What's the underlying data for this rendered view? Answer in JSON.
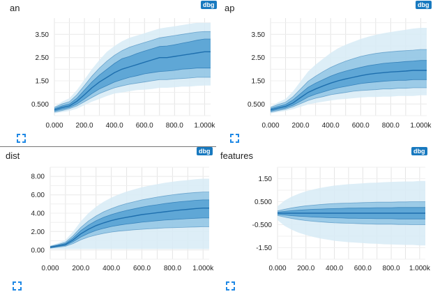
{
  "badge_label": "dbg",
  "colors": {
    "band_outer": "#d7ebf6",
    "band_mid": "#86bfe2",
    "band_inner": "#4b9bd0",
    "line": "#1e6fae",
    "grid": "#e4e4e4",
    "badge": "#1879bf"
  },
  "icons": {
    "expand": "fullscreen-expand-icon"
  },
  "chart_data": [
    {
      "id": "an",
      "type": "area",
      "title": "an",
      "x_ticks": [
        "0.000",
        "200.0",
        "400.0",
        "600.0",
        "800.0",
        "1.000k"
      ],
      "y_ticks": [
        "0.500",
        "1.50",
        "2.50",
        "3.50"
      ],
      "xlim": [
        0,
        1040
      ],
      "ylim": [
        0.0,
        4.2
      ],
      "x": [
        0,
        50,
        100,
        150,
        200,
        250,
        300,
        350,
        400,
        450,
        500,
        550,
        600,
        650,
        700,
        750,
        800,
        850,
        900,
        950,
        1000,
        1040
      ],
      "median": [
        0.25,
        0.35,
        0.42,
        0.62,
        0.9,
        1.2,
        1.45,
        1.65,
        1.85,
        2.0,
        2.1,
        2.2,
        2.3,
        2.4,
        2.5,
        2.5,
        2.55,
        2.6,
        2.65,
        2.7,
        2.75,
        2.75
      ],
      "q1": [
        0.2,
        0.28,
        0.35,
        0.5,
        0.72,
        0.95,
        1.15,
        1.3,
        1.45,
        1.55,
        1.65,
        1.72,
        1.8,
        1.85,
        1.9,
        1.92,
        1.95,
        2.0,
        2.02,
        2.05,
        2.05,
        2.05
      ],
      "q3": [
        0.3,
        0.42,
        0.5,
        0.75,
        1.1,
        1.45,
        1.75,
        2.0,
        2.25,
        2.45,
        2.55,
        2.68,
        2.78,
        2.88,
        2.98,
        3.0,
        3.05,
        3.12,
        3.18,
        3.25,
        3.3,
        3.3
      ],
      "p10": [
        0.15,
        0.22,
        0.3,
        0.42,
        0.6,
        0.78,
        0.95,
        1.08,
        1.2,
        1.28,
        1.35,
        1.4,
        1.45,
        1.5,
        1.55,
        1.55,
        1.58,
        1.6,
        1.62,
        1.65,
        1.65,
        1.65
      ],
      "p90": [
        0.35,
        0.5,
        0.6,
        0.9,
        1.3,
        1.7,
        2.05,
        2.35,
        2.6,
        2.8,
        2.95,
        3.05,
        3.15,
        3.25,
        3.35,
        3.4,
        3.45,
        3.5,
        3.55,
        3.6,
        3.62,
        3.62
      ],
      "min": [
        0.1,
        0.15,
        0.2,
        0.3,
        0.45,
        0.6,
        0.72,
        0.85,
        0.95,
        1.0,
        1.05,
        1.1,
        1.12,
        1.15,
        1.2,
        1.2,
        1.22,
        1.25,
        1.25,
        1.28,
        1.3,
        1.3
      ],
      "max": [
        0.4,
        0.6,
        0.75,
        1.1,
        1.55,
        2.0,
        2.4,
        2.75,
        3.0,
        3.2,
        3.35,
        3.45,
        3.55,
        3.65,
        3.75,
        3.8,
        3.85,
        3.9,
        3.95,
        4.0,
        4.0,
        4.0
      ]
    },
    {
      "id": "ap",
      "type": "area",
      "title": "ap",
      "x_ticks": [
        "0.000",
        "200.0",
        "400.0",
        "600.0",
        "800.0",
        "1.000k"
      ],
      "y_ticks": [
        "0.500",
        "1.50",
        "2.50",
        "3.50"
      ],
      "xlim": [
        0,
        1040
      ],
      "ylim": [
        0.0,
        4.2
      ],
      "x": [
        0,
        50,
        100,
        150,
        200,
        250,
        300,
        350,
        400,
        450,
        500,
        550,
        600,
        650,
        700,
        750,
        800,
        850,
        900,
        950,
        1000,
        1040
      ],
      "median": [
        0.25,
        0.33,
        0.4,
        0.55,
        0.78,
        1.0,
        1.15,
        1.28,
        1.4,
        1.5,
        1.58,
        1.65,
        1.72,
        1.78,
        1.82,
        1.85,
        1.88,
        1.9,
        1.92,
        1.95,
        1.95,
        1.95
      ],
      "q1": [
        0.2,
        0.27,
        0.33,
        0.45,
        0.62,
        0.8,
        0.92,
        1.02,
        1.12,
        1.2,
        1.26,
        1.32,
        1.38,
        1.42,
        1.45,
        1.48,
        1.5,
        1.52,
        1.52,
        1.55,
        1.55,
        1.55
      ],
      "q3": [
        0.3,
        0.4,
        0.48,
        0.68,
        0.95,
        1.22,
        1.4,
        1.55,
        1.7,
        1.82,
        1.92,
        2.0,
        2.08,
        2.15,
        2.2,
        2.25,
        2.28,
        2.3,
        2.33,
        2.35,
        2.38,
        2.38
      ],
      "p10": [
        0.15,
        0.22,
        0.28,
        0.38,
        0.52,
        0.65,
        0.75,
        0.82,
        0.9,
        0.95,
        1.0,
        1.05,
        1.08,
        1.1,
        1.12,
        1.15,
        1.15,
        1.18,
        1.18,
        1.2,
        1.2,
        1.2
      ],
      "p90": [
        0.35,
        0.48,
        0.58,
        0.82,
        1.15,
        1.48,
        1.7,
        1.9,
        2.08,
        2.22,
        2.35,
        2.45,
        2.55,
        2.62,
        2.68,
        2.72,
        2.75,
        2.78,
        2.8,
        2.82,
        2.85,
        2.85
      ],
      "min": [
        0.1,
        0.15,
        0.2,
        0.28,
        0.38,
        0.48,
        0.55,
        0.6,
        0.65,
        0.7,
        0.72,
        0.75,
        0.78,
        0.8,
        0.8,
        0.82,
        0.82,
        0.85,
        0.85,
        0.85,
        0.88,
        0.88
      ],
      "max": [
        0.4,
        0.58,
        0.72,
        1.05,
        1.48,
        1.9,
        2.2,
        2.45,
        2.7,
        2.9,
        3.05,
        3.18,
        3.3,
        3.4,
        3.48,
        3.55,
        3.6,
        3.65,
        3.7,
        3.75,
        3.78,
        3.78
      ]
    },
    {
      "id": "dist",
      "type": "area",
      "title": "dist",
      "x_ticks": [
        "0.000",
        "200.0",
        "400.0",
        "600.0",
        "800.0",
        "1.000k"
      ],
      "y_ticks": [
        "0.00",
        "2.00",
        "4.00",
        "6.00",
        "8.00"
      ],
      "xlim": [
        0,
        1040
      ],
      "ylim": [
        -1.0,
        9.0
      ],
      "x": [
        0,
        50,
        100,
        150,
        200,
        250,
        300,
        350,
        400,
        450,
        500,
        550,
        600,
        650,
        700,
        750,
        800,
        850,
        900,
        950,
        1000,
        1040
      ],
      "median": [
        0.3,
        0.45,
        0.6,
        1.1,
        1.75,
        2.25,
        2.65,
        2.95,
        3.2,
        3.4,
        3.55,
        3.7,
        3.85,
        3.95,
        4.05,
        4.15,
        4.25,
        4.35,
        4.42,
        4.5,
        4.55,
        4.55
      ],
      "q1": [
        0.25,
        0.38,
        0.5,
        0.9,
        1.4,
        1.8,
        2.12,
        2.35,
        2.55,
        2.7,
        2.82,
        2.92,
        3.02,
        3.1,
        3.18,
        3.25,
        3.3,
        3.35,
        3.4,
        3.45,
        3.48,
        3.48
      ],
      "q3": [
        0.35,
        0.52,
        0.72,
        1.32,
        2.1,
        2.7,
        3.18,
        3.55,
        3.85,
        4.1,
        4.3,
        4.48,
        4.65,
        4.8,
        4.92,
        5.05,
        5.15,
        5.25,
        5.32,
        5.4,
        5.45,
        5.45
      ],
      "p10": [
        0.2,
        0.3,
        0.4,
        0.7,
        1.1,
        1.4,
        1.62,
        1.8,
        1.95,
        2.05,
        2.12,
        2.2,
        2.25,
        2.3,
        2.35,
        2.4,
        2.42,
        2.45,
        2.48,
        2.5,
        2.52,
        2.52
      ],
      "p90": [
        0.4,
        0.6,
        0.85,
        1.55,
        2.45,
        3.15,
        3.7,
        4.15,
        4.5,
        4.8,
        5.05,
        5.25,
        5.45,
        5.6,
        5.75,
        5.88,
        6.0,
        6.1,
        6.18,
        6.25,
        6.3,
        6.3
      ],
      "min": [
        0.1,
        0.1,
        0.1,
        0.1,
        0.1,
        0.1,
        0.1,
        0.1,
        0.1,
        0.1,
        0.1,
        0.1,
        0.1,
        0.1,
        0.1,
        0.1,
        0.1,
        0.1,
        0.1,
        0.1,
        0.1,
        0.1
      ],
      "max": [
        0.5,
        0.75,
        1.1,
        2.0,
        3.1,
        4.0,
        4.7,
        5.25,
        5.7,
        6.05,
        6.35,
        6.6,
        6.82,
        7.0,
        7.15,
        7.3,
        7.42,
        7.52,
        7.6,
        7.7,
        7.75,
        7.75
      ]
    },
    {
      "id": "features",
      "type": "area",
      "title": "features",
      "x_ticks": [
        "0.000",
        "200.0",
        "400.0",
        "600.0",
        "800.0",
        "1.000k"
      ],
      "y_ticks": [
        "-1.50",
        "-0.500",
        "0.500",
        "1.50"
      ],
      "xlim": [
        0,
        1040
      ],
      "ylim": [
        -2.0,
        2.0
      ],
      "x": [
        0,
        50,
        100,
        150,
        200,
        250,
        300,
        350,
        400,
        450,
        500,
        550,
        600,
        650,
        700,
        750,
        800,
        850,
        900,
        950,
        1000,
        1040
      ],
      "median": [
        0.0,
        0.0,
        0.0,
        0.0,
        0.0,
        0.0,
        0.0,
        0.0,
        0.0,
        0.0,
        0.0,
        0.0,
        0.0,
        0.0,
        0.0,
        0.0,
        0.0,
        0.0,
        0.0,
        0.0,
        0.0,
        0.0
      ],
      "q1": [
        -0.05,
        -0.08,
        -0.11,
        -0.13,
        -0.15,
        -0.17,
        -0.18,
        -0.19,
        -0.2,
        -0.21,
        -0.22,
        -0.22,
        -0.23,
        -0.23,
        -0.24,
        -0.24,
        -0.24,
        -0.25,
        -0.25,
        -0.25,
        -0.25,
        -0.25
      ],
      "q3": [
        0.05,
        0.08,
        0.11,
        0.13,
        0.15,
        0.17,
        0.18,
        0.19,
        0.2,
        0.21,
        0.22,
        0.22,
        0.23,
        0.23,
        0.24,
        0.24,
        0.24,
        0.25,
        0.25,
        0.25,
        0.25,
        0.25
      ],
      "p10": [
        -0.1,
        -0.17,
        -0.23,
        -0.28,
        -0.32,
        -0.35,
        -0.38,
        -0.4,
        -0.42,
        -0.43,
        -0.44,
        -0.45,
        -0.46,
        -0.47,
        -0.48,
        -0.48,
        -0.48,
        -0.49,
        -0.49,
        -0.5,
        -0.5,
        -0.5
      ],
      "p90": [
        0.1,
        0.17,
        0.23,
        0.28,
        0.32,
        0.35,
        0.38,
        0.4,
        0.42,
        0.43,
        0.44,
        0.45,
        0.46,
        0.47,
        0.48,
        0.48,
        0.48,
        0.49,
        0.49,
        0.5,
        0.5,
        0.5
      ],
      "min": [
        -0.3,
        -0.55,
        -0.72,
        -0.85,
        -0.95,
        -1.03,
        -1.1,
        -1.15,
        -1.2,
        -1.23,
        -1.26,
        -1.28,
        -1.3,
        -1.32,
        -1.33,
        -1.35,
        -1.36,
        -1.37,
        -1.38,
        -1.38,
        -1.4,
        -1.4
      ],
      "max": [
        0.3,
        0.55,
        0.72,
        0.85,
        0.95,
        1.03,
        1.1,
        1.15,
        1.2,
        1.23,
        1.26,
        1.28,
        1.3,
        1.32,
        1.33,
        1.35,
        1.36,
        1.37,
        1.38,
        1.38,
        1.4,
        1.4
      ]
    }
  ]
}
